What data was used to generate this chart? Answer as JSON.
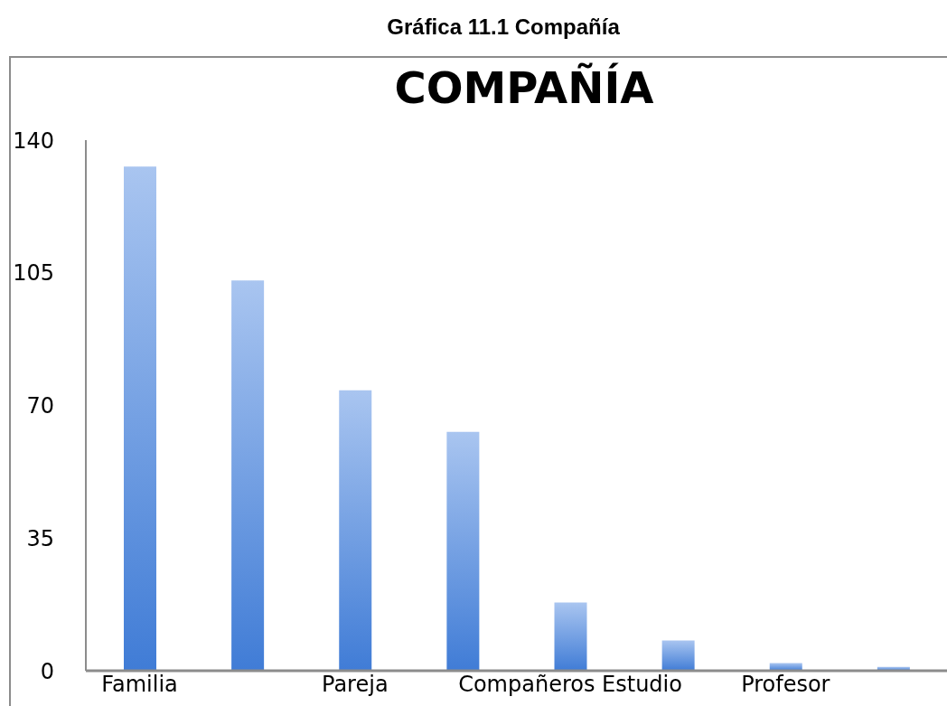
{
  "chart_data": {
    "type": "bar",
    "title": "COMPAÑÍA",
    "annotations": [
      "Gráfica 11.1 Compañía"
    ],
    "categories": [
      "Familia",
      null,
      "Pareja",
      null,
      "Compañeros Estudio",
      null,
      "Profesor",
      null
    ],
    "values": [
      133,
      103,
      74,
      63,
      18,
      8,
      2,
      1
    ],
    "color": "#6f9fe6",
    "ylim": [
      0,
      140
    ],
    "yticks": [
      0,
      35,
      70,
      105,
      140
    ]
  }
}
